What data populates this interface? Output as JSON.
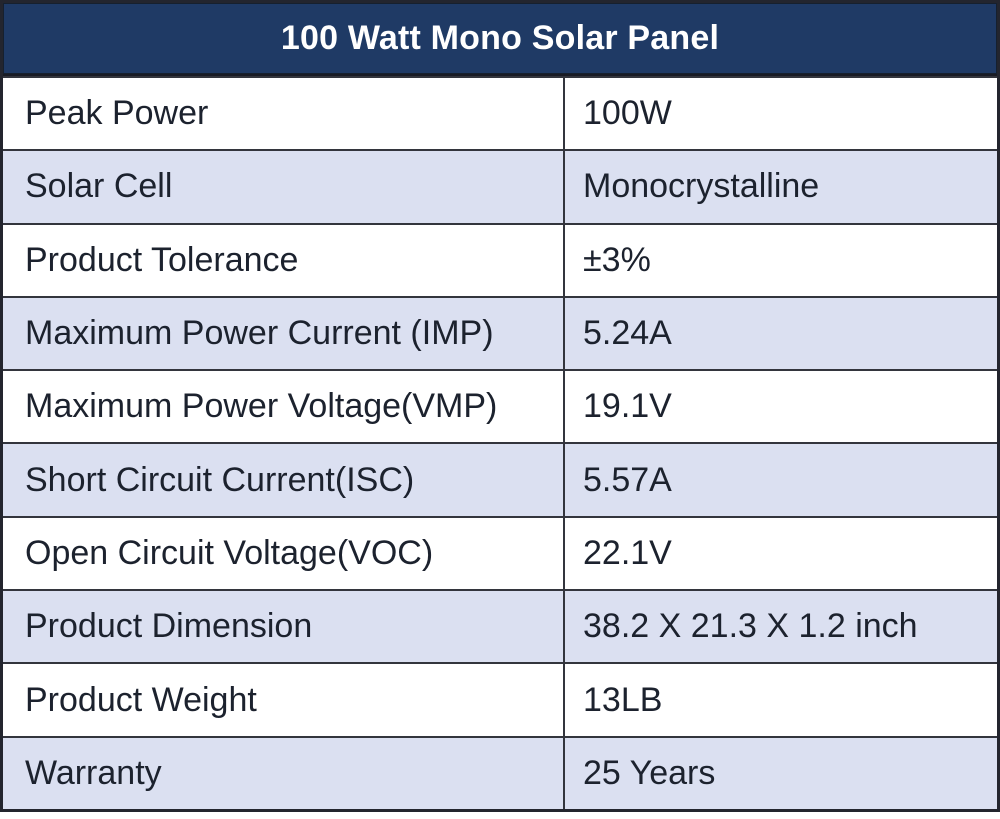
{
  "header": {
    "title": "100 Watt Mono Solar Panel"
  },
  "table": {
    "rows": [
      {
        "label": "Peak Power",
        "value": "100W"
      },
      {
        "label": "Solar Cell",
        "value": "Monocrystalline"
      },
      {
        "label": "Product Tolerance",
        "value": "±3%"
      },
      {
        "label": "Maximum Power Current (IMP)",
        "value": "5.24A"
      },
      {
        "label": "Maximum Power Voltage(VMP)",
        "value": "19.1V"
      },
      {
        "label": "Short Circuit Current(ISC)",
        "value": "5.57A"
      },
      {
        "label": "Open Circuit Voltage(VOC)",
        "value": "22.1V"
      },
      {
        "label": "Product Dimension",
        "value": "38.2 X 21.3 X 1.2 inch"
      },
      {
        "label": "Product Weight",
        "value": "13LB"
      },
      {
        "label": "Warranty",
        "value": "25 Years"
      }
    ]
  },
  "colors": {
    "header_bg": "#1f3a65",
    "header_text": "#ffffff",
    "row_bg": "#ffffff",
    "row_alt_bg": "#dbe0f1",
    "border": "#33353d",
    "text": "#1c222e"
  }
}
